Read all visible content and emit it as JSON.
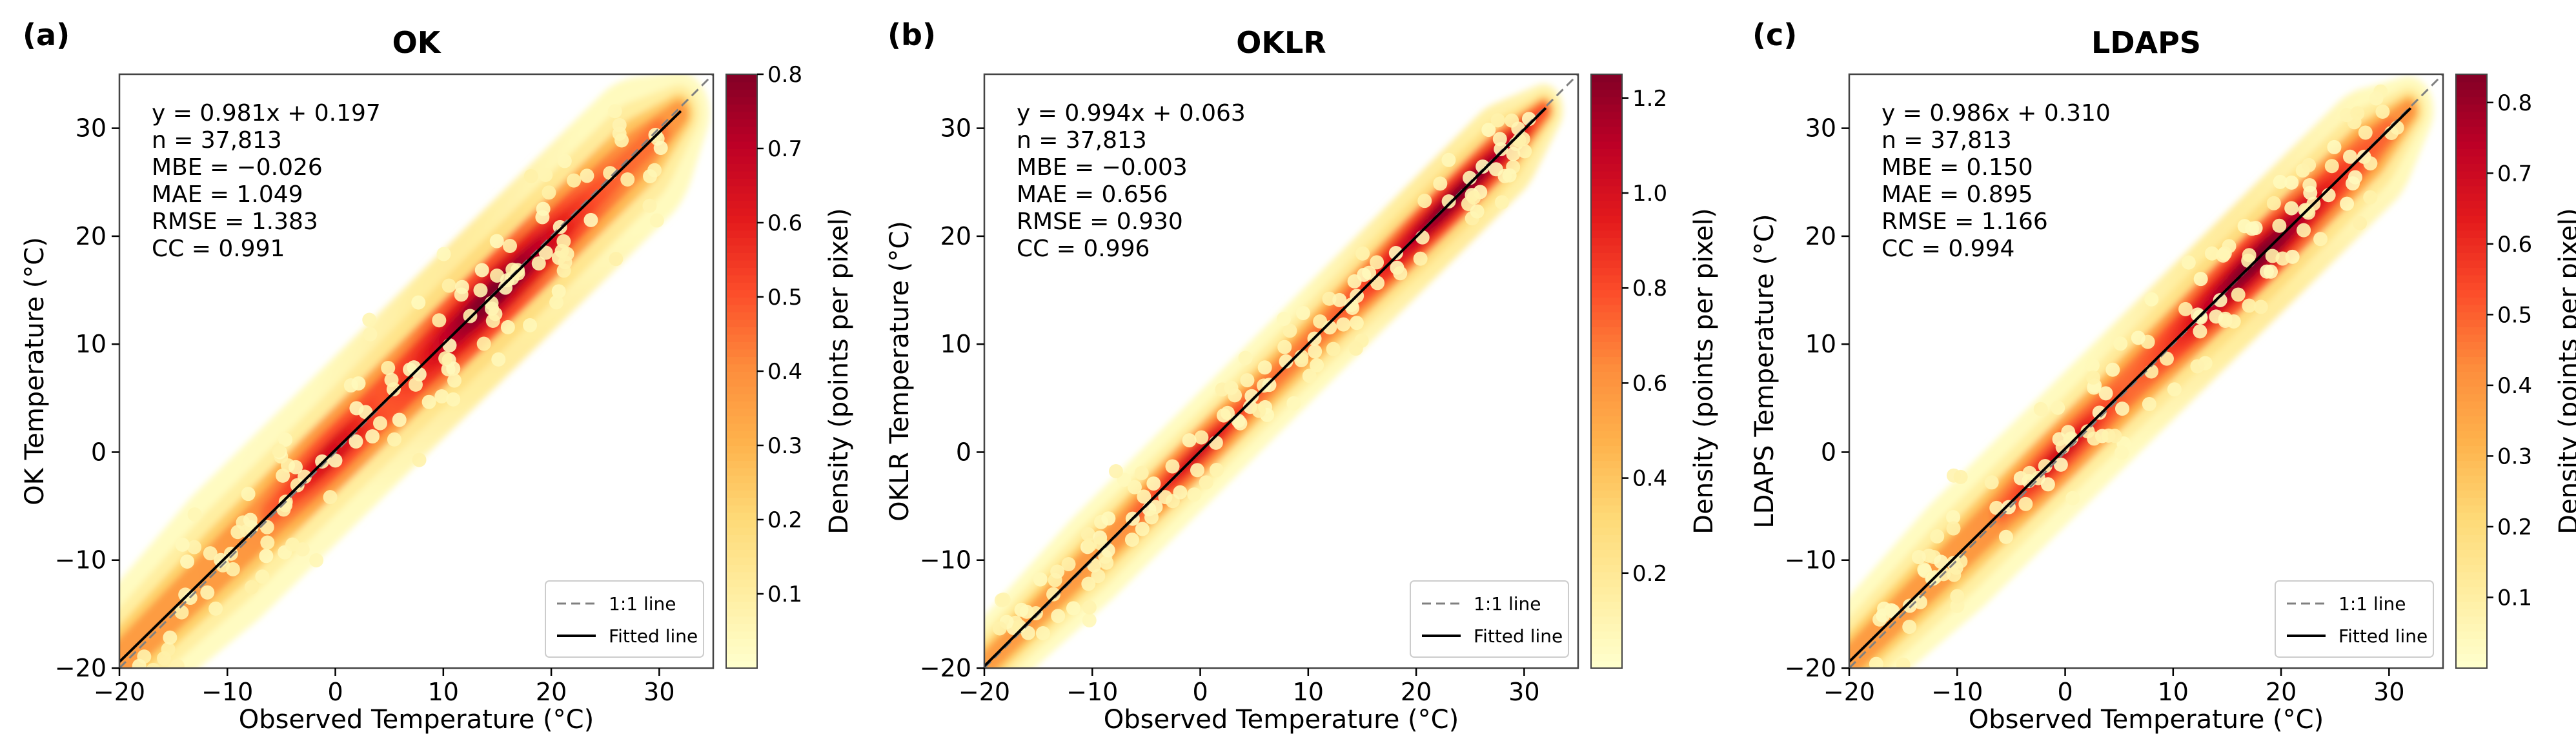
{
  "chart_data": [
    {
      "type": "scatter",
      "panel_label": "(a)",
      "title": "OK",
      "xlabel": "Observed Temperature (°C)",
      "ylabel": "OK Temperature (°C)",
      "xlim": [
        -20,
        35
      ],
      "ylim": [
        -20,
        35
      ],
      "xticks": [
        -20,
        -10,
        0,
        10,
        20,
        30
      ],
      "xtick_labels": [
        "−20",
        "−10",
        "0",
        "10",
        "20",
        "30"
      ],
      "yticks": [
        -20,
        -10,
        0,
        10,
        20,
        30
      ],
      "ytick_labels": [
        "−20",
        "−10",
        "0",
        "10",
        "20",
        "30"
      ],
      "stats": [
        "y = 0.981x + 0.197",
        "n = 37,813",
        "MBE = −0.026",
        "MAE = 1.049",
        "RMSE = 1.383",
        "CC = 0.991"
      ],
      "fit": {
        "slope": 0.981,
        "intercept": 0.197,
        "x_range": [
          -20,
          32
        ]
      },
      "spread": 2.2,
      "hot_center": 15,
      "colorbar": {
        "label": "Density (points per pixel)",
        "min": 0,
        "max": 0.8,
        "ticks": [
          0.1,
          0.2,
          0.3,
          0.4,
          0.5,
          0.6,
          0.7,
          0.8
        ],
        "tick_labels": [
          "0.1",
          "0.2",
          "0.3",
          "0.4",
          "0.5",
          "0.6",
          "0.7",
          "0.8"
        ]
      },
      "legend": {
        "position": "lower-right",
        "entries": [
          "1:1 line",
          "Fitted line"
        ]
      }
    },
    {
      "type": "scatter",
      "panel_label": "(b)",
      "title": "OKLR",
      "xlabel": "Observed Temperature (°C)",
      "ylabel": "OKLR Temperature (°C)",
      "xlim": [
        -20,
        35
      ],
      "ylim": [
        -20,
        35
      ],
      "xticks": [
        -20,
        -10,
        0,
        10,
        20,
        30
      ],
      "xtick_labels": [
        "−20",
        "−10",
        "0",
        "10",
        "20",
        "30"
      ],
      "yticks": [
        -20,
        -10,
        0,
        10,
        20,
        30
      ],
      "ytick_labels": [
        "−20",
        "−10",
        "0",
        "10",
        "20",
        "30"
      ],
      "stats": [
        "y = 0.994x + 0.063",
        "n = 37,813",
        "MBE = −0.003",
        "MAE = 0.656",
        "RMSE = 0.930",
        "CC = 0.996"
      ],
      "fit": {
        "slope": 0.994,
        "intercept": 0.063,
        "x_range": [
          -20,
          32
        ]
      },
      "spread": 1.4,
      "hot_center": 24,
      "colorbar": {
        "label": "Density (points per pixel)",
        "min": 0,
        "max": 1.25,
        "ticks": [
          0.2,
          0.4,
          0.6,
          0.8,
          1.0,
          1.2
        ],
        "tick_labels": [
          "0.2",
          "0.4",
          "0.6",
          "0.8",
          "1.0",
          "1.2"
        ]
      },
      "legend": {
        "position": "lower-right",
        "entries": [
          "1:1 line",
          "Fitted line"
        ]
      }
    },
    {
      "type": "scatter",
      "panel_label": "(c)",
      "title": "LDAPS",
      "xlabel": "Observed Temperature (°C)",
      "ylabel": "LDAPS Temperature (°C)",
      "xlim": [
        -20,
        35
      ],
      "ylim": [
        -20,
        35
      ],
      "xticks": [
        -20,
        -10,
        0,
        10,
        20,
        30
      ],
      "xtick_labels": [
        "−20",
        "−10",
        "0",
        "10",
        "20",
        "30"
      ],
      "yticks": [
        -20,
        -10,
        0,
        10,
        20,
        30
      ],
      "ytick_labels": [
        "−20",
        "−10",
        "0",
        "10",
        "20",
        "30"
      ],
      "stats": [
        "y = 0.986x + 0.310",
        "n = 37,813",
        "MBE = 0.150",
        "MAE = 0.895",
        "RMSE = 1.166",
        "CC = 0.994"
      ],
      "fit": {
        "slope": 0.986,
        "intercept": 0.31,
        "x_range": [
          -20,
          32
        ]
      },
      "spread": 1.8,
      "hot_center": 18,
      "colorbar": {
        "label": "Density (points per pixel)",
        "min": 0,
        "max": 0.84,
        "ticks": [
          0.1,
          0.2,
          0.3,
          0.4,
          0.5,
          0.6,
          0.7,
          0.8
        ],
        "tick_labels": [
          "0.1",
          "0.2",
          "0.3",
          "0.4",
          "0.5",
          "0.6",
          "0.7",
          "0.8"
        ]
      },
      "legend": {
        "position": "lower-right",
        "entries": [
          "1:1 line",
          "Fitted line"
        ]
      }
    }
  ],
  "colormap": [
    "#ffffcc",
    "#ffeda0",
    "#fed976",
    "#feb24c",
    "#fd8d3c",
    "#fc4e2a",
    "#e31a1c",
    "#bd0026",
    "#800026"
  ]
}
